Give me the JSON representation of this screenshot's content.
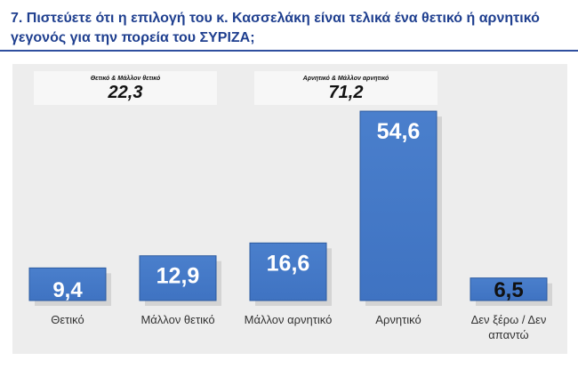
{
  "question": "7. Πιστεύετε ότι η επιλογή του κ. Κασσελάκη είναι τελικά ένα θετικό ή αρνητικό γεγονός για την πορεία του ΣΥΡΙΖΑ;",
  "summary": {
    "positive": {
      "label": "Θετικό & Μάλλον θετικό",
      "value": "22,3"
    },
    "negative": {
      "label": "Αρνητικό & Μάλλον αρνητικό",
      "value": "71,2"
    }
  },
  "colors": {
    "bar_fill": "#3f73c2",
    "bar_edge": "#2c5aa0",
    "title": "#1f3f8f",
    "plot_bg": "#ededed"
  },
  "chart_data": {
    "type": "bar",
    "title": "7. Πιστεύετε ότι η επιλογή του κ. Κασσελάκη είναι τελικά ένα θετικό ή αρνητικό γεγονός για την πορεία του ΣΥΡΙΖΑ;",
    "categories": [
      "Θετικό",
      "Μάλλον θετικό",
      "Μάλλον αρνητικό",
      "Αρνητικό",
      "Δεν ξέρω / Δεν απαντώ"
    ],
    "values": [
      9.4,
      12.9,
      16.6,
      54.6,
      6.5
    ],
    "value_labels": [
      "9,4",
      "12,9",
      "16,6",
      "54,6",
      "6,5"
    ],
    "xlabel": "",
    "ylabel": "",
    "ylim": [
      0,
      60
    ]
  }
}
